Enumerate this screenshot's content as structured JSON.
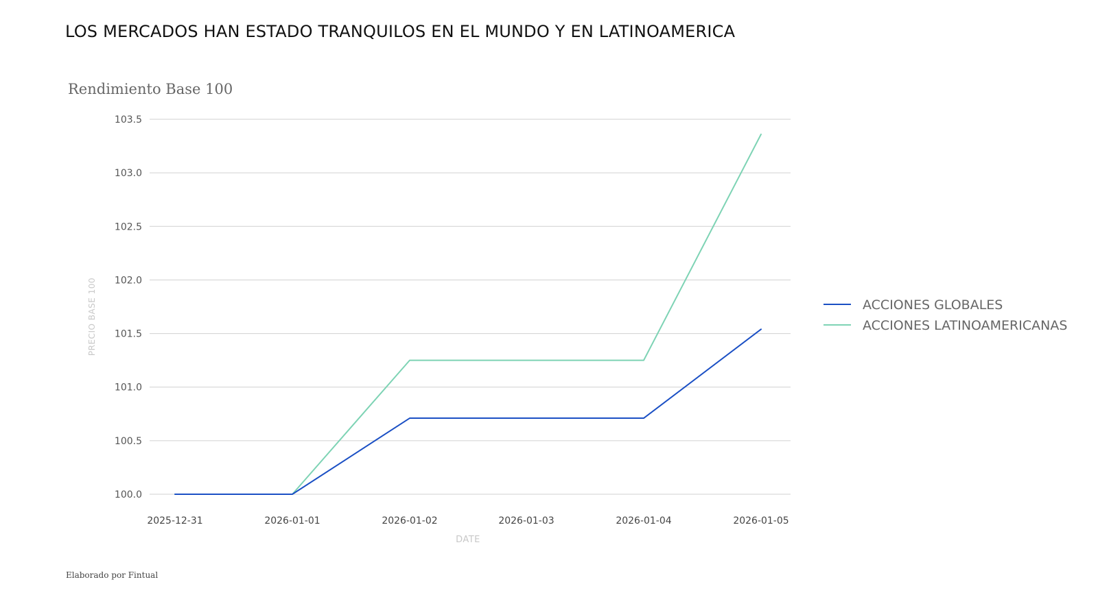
{
  "header": {
    "title": "LOS MERCADOS HAN ESTADO TRANQUILOS EN EL MUNDO Y EN LATINOAMERICA",
    "subtitle": "Rendimiento Base 100"
  },
  "footer": {
    "note": "Elaborado por Fintual"
  },
  "chart_data": {
    "type": "line",
    "x": [
      "2025-12-31",
      "2026-01-01",
      "2026-01-02",
      "2026-01-03",
      "2026-01-04",
      "2026-01-05"
    ],
    "xlabel": "DATE",
    "ylabel": "PRECIO BASE 100",
    "ylim": [
      100.0,
      103.5
    ],
    "yticks": [
      "100.0",
      "100.5",
      "101.0",
      "101.5",
      "102.0",
      "102.5",
      "103.0",
      "103.5"
    ],
    "grid": "horizontal",
    "legend_position": "right",
    "series": [
      {
        "name": "ACCIONES GLOBALES",
        "color": "#1a4fc4",
        "points": [
          {
            "x": "2025-12-31",
            "y": 100.0
          },
          {
            "x": "2026-01-01",
            "y": 100.0
          },
          {
            "x": "2026-01-02",
            "y": 100.71
          },
          {
            "x": "2026-01-04",
            "y": 100.71
          },
          {
            "x": "2026-01-05",
            "y": 101.54
          }
        ]
      },
      {
        "name": "ACCIONES LATINOAMERICANAS",
        "color": "#7dd3b4",
        "points": [
          {
            "x": "2025-12-31",
            "y": 100.0
          },
          {
            "x": "2026-01-01",
            "y": 100.0
          },
          {
            "x": "2026-01-02",
            "y": 101.25
          },
          {
            "x": "2026-01-04",
            "y": 101.25
          },
          {
            "x": "2026-01-05",
            "y": 103.36
          }
        ]
      }
    ]
  }
}
